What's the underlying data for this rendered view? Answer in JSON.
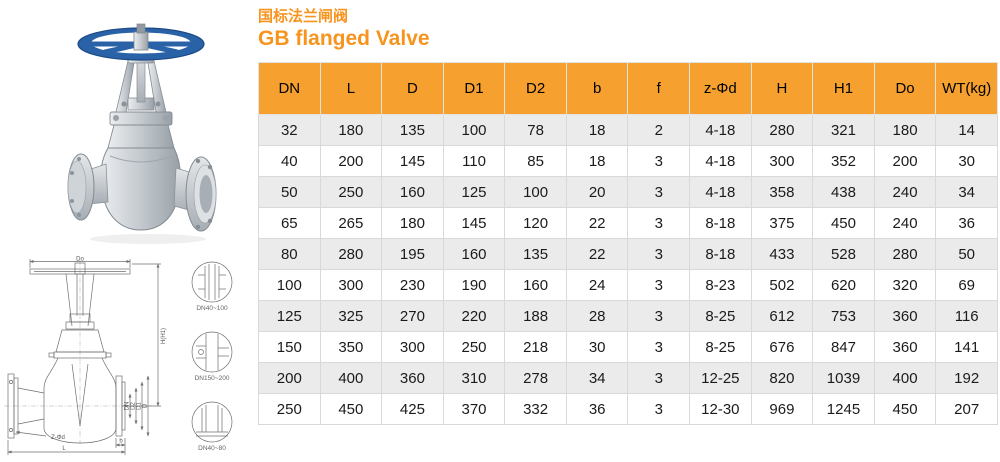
{
  "title": {
    "zh": "国标法兰闸阀",
    "en": "GB flanged Valve"
  },
  "colors": {
    "accent": "#f7941e",
    "header_bg": "#f6a02f",
    "row_alt": "#ebebeb",
    "border": "#d9d9d9",
    "handwheel_blue": "#2a62a8",
    "drawing_line": "#6f6f6f"
  },
  "table": {
    "columns": [
      "DN",
      "L",
      "D",
      "D1",
      "D2",
      "b",
      "f",
      "z-Φd",
      "H",
      "H1",
      "Do",
      "WT(kg)"
    ],
    "rows": [
      [
        "32",
        "180",
        "135",
        "100",
        "78",
        "18",
        "2",
        "4-18",
        "280",
        "321",
        "180",
        "14"
      ],
      [
        "40",
        "200",
        "145",
        "110",
        "85",
        "18",
        "3",
        "4-18",
        "300",
        "352",
        "200",
        "30"
      ],
      [
        "50",
        "250",
        "160",
        "125",
        "100",
        "20",
        "3",
        "4-18",
        "358",
        "438",
        "240",
        "34"
      ],
      [
        "65",
        "265",
        "180",
        "145",
        "120",
        "22",
        "3",
        "8-18",
        "375",
        "450",
        "240",
        "36"
      ],
      [
        "80",
        "280",
        "195",
        "160",
        "135",
        "22",
        "3",
        "8-18",
        "433",
        "528",
        "280",
        "50"
      ],
      [
        "100",
        "300",
        "230",
        "190",
        "160",
        "24",
        "3",
        "8-23",
        "502",
        "620",
        "320",
        "69"
      ],
      [
        "125",
        "325",
        "270",
        "220",
        "188",
        "28",
        "3",
        "8-25",
        "612",
        "753",
        "360",
        "116"
      ],
      [
        "150",
        "350",
        "300",
        "250",
        "218",
        "30",
        "3",
        "8-25",
        "676",
        "847",
        "360",
        "141"
      ],
      [
        "200",
        "400",
        "360",
        "310",
        "278",
        "34",
        "3",
        "12-25",
        "820",
        "1039",
        "400",
        "192"
      ],
      [
        "250",
        "450",
        "425",
        "370",
        "332",
        "36",
        "3",
        "12-30",
        "969",
        "1245",
        "450",
        "207"
      ]
    ]
  },
  "drawing": {
    "dims": {
      "do": "Do",
      "h": "H(H1)",
      "l": "L",
      "b": "b",
      "bolt": "Z-Φd",
      "bore1": "DN",
      "bore2": "D2",
      "bore3": "D1",
      "bore4": "D"
    },
    "details": [
      {
        "label": "DN40~100"
      },
      {
        "label": "DN150~200"
      },
      {
        "label": "DN40~80"
      }
    ]
  }
}
